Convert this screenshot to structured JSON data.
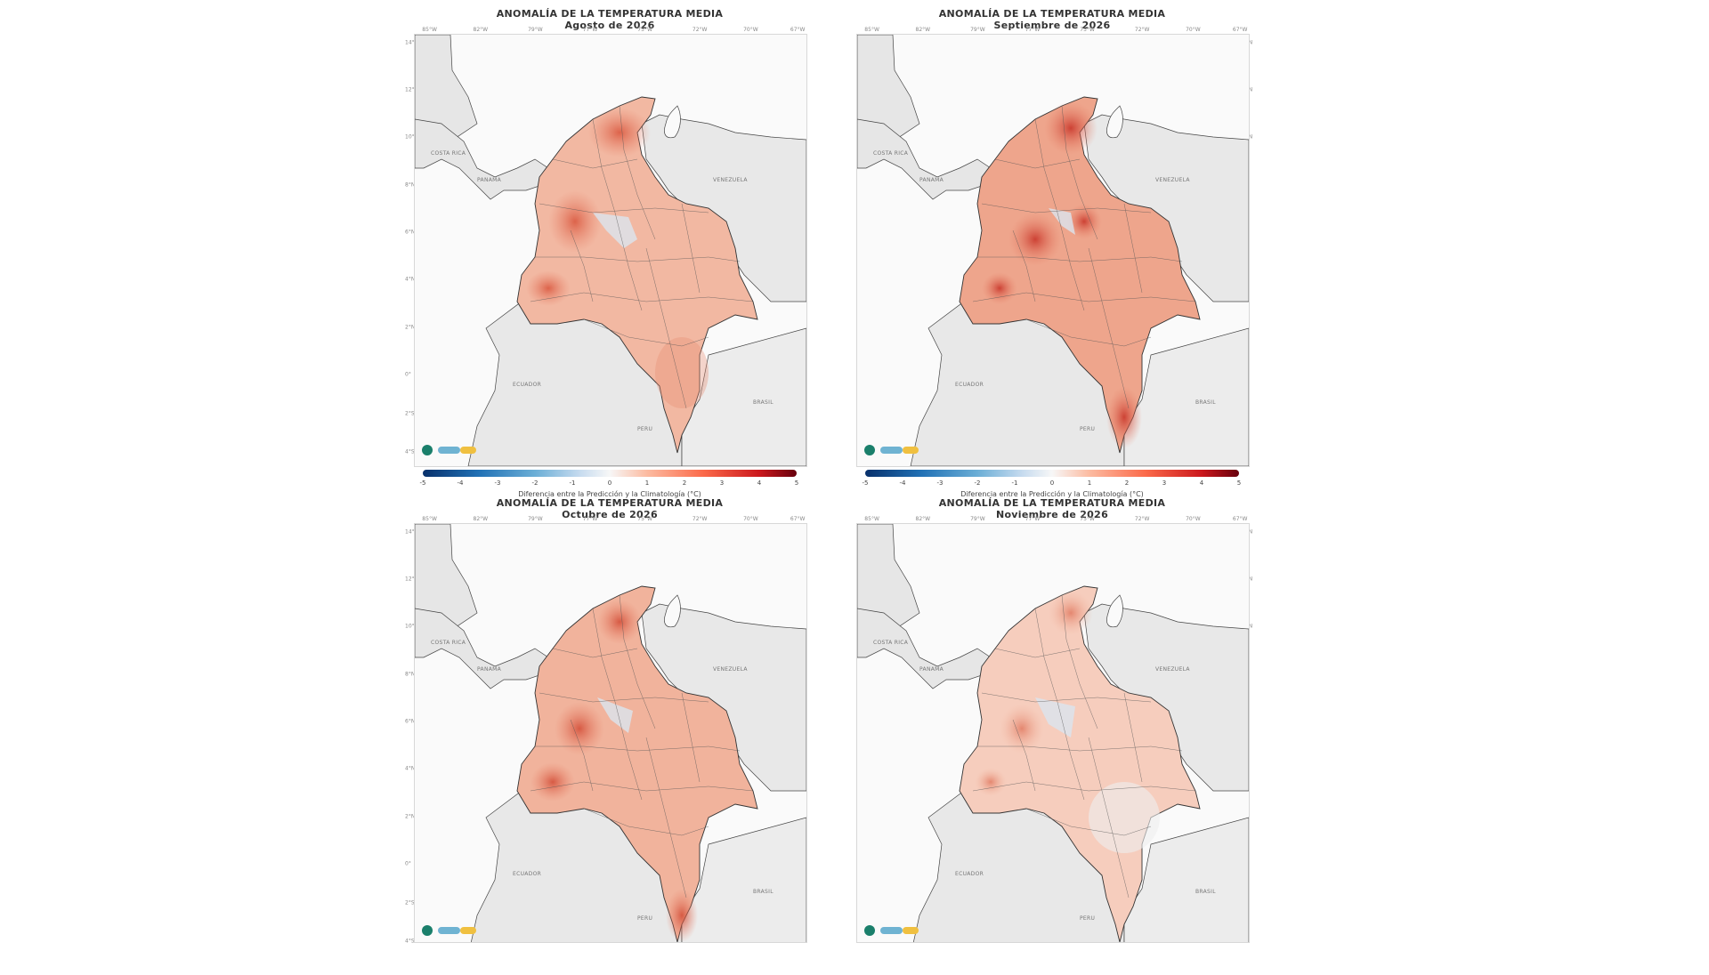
{
  "figure": {
    "map_title": "ANOMALÍA DE LA TEMPERATURA MEDIA",
    "colorbar_label": "Diferencia entre la Predicción y la Climatología (°C)",
    "colorbar_ticks": [
      "-5",
      "-4",
      "-3",
      "-2",
      "-1",
      "0",
      "1",
      "2",
      "3",
      "4",
      "5"
    ],
    "colorbar_range": [
      -5,
      5
    ],
    "colormap": [
      "#08306b",
      "#2171b5",
      "#6baed6",
      "#c6dbef",
      "#f7f7f7",
      "#fcbba1",
      "#fb6a4a",
      "#cb181d",
      "#67000d"
    ],
    "lon_labels": [
      "85°W",
      "82°W",
      "79°W",
      "77°W",
      "75°W",
      "72°W",
      "70°W",
      "67°W"
    ],
    "lat_labels": [
      "14°N",
      "12°N",
      "10°N",
      "8°N",
      "6°N",
      "4°N",
      "2°N",
      "0°",
      "2°S",
      "4°S"
    ],
    "country_labels": {
      "panama": "PANAMA",
      "costa_rica": "COSTA RICA",
      "venezuela": "VENEZUELA",
      "ecuador": "ECUADOR",
      "peru": "PERU",
      "brasil": "BRASIL"
    }
  },
  "panels": [
    {
      "month_title": "Agosto de 2026",
      "anomaly_level": 0.55,
      "hotspots": "north-andes"
    },
    {
      "month_title": "Septiembre de 2026",
      "anomaly_level": 0.7,
      "hotspots": "widespread"
    },
    {
      "month_title": "Octubre de 2026",
      "anomaly_level": 0.6,
      "hotspots": "south-west"
    },
    {
      "month_title": "Noviembre de 2026",
      "anomaly_level": 0.35,
      "hotspots": "weak"
    }
  ]
}
